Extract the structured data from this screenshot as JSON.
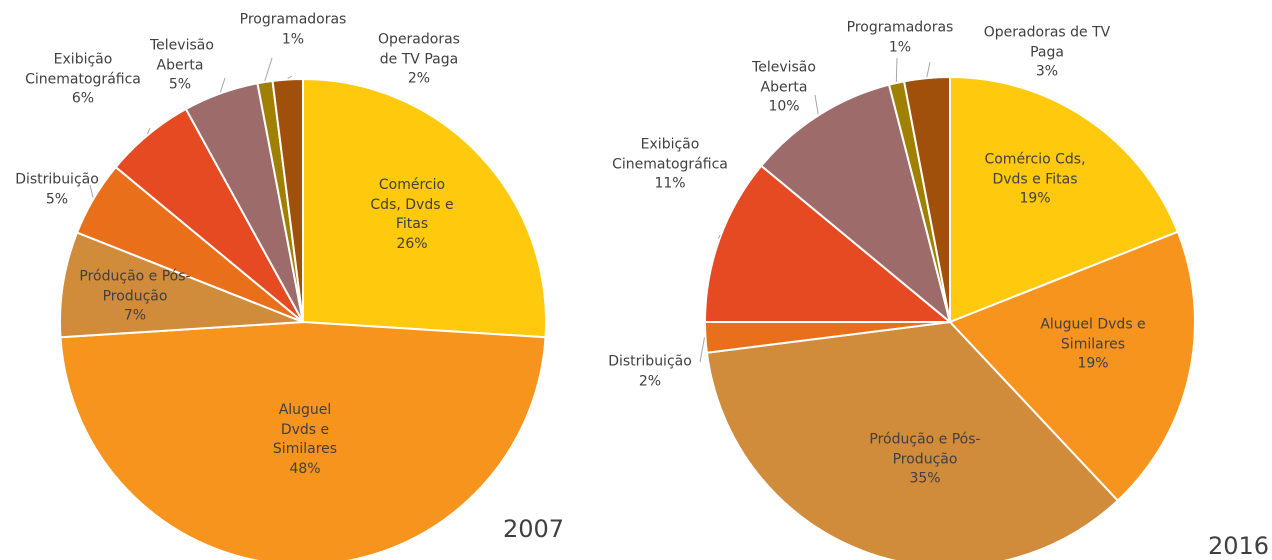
{
  "chart_data": [
    {
      "type": "pie",
      "title": "2007",
      "categories": [
        "Comércio Cds, Dvds e Fitas",
        "Aluguel Dvds e Similares",
        "Pródução e Pós-Produção",
        "Distribuição",
        "Exibição Cinematográfica",
        "Televisão Aberta",
        "Programadoras",
        "Operadoras de TV Paga"
      ],
      "values": [
        26,
        48,
        7,
        5,
        6,
        5,
        1,
        2
      ],
      "value_labels": [
        "26%",
        "48%",
        "7%",
        "5%",
        "6%",
        "5%",
        "1%",
        "2%"
      ],
      "colors": [
        "#ffc90e",
        "#f7941d",
        "#d08b3b",
        "#ea6f1a",
        "#e54a22",
        "#9e6b6b",
        "#a08000",
        "#a0500a"
      ]
    },
    {
      "type": "pie",
      "title": "2016",
      "categories": [
        "Comércio Cds, Dvds e Fitas",
        "Aluguel  Dvds e Similares",
        "Pródução e Pós-Produção",
        "Distribuição",
        "Exibição Cinematográfica",
        "Televisão Aberta",
        "Programadoras",
        "Operadoras de TV Paga"
      ],
      "values": [
        19,
        19,
        35,
        2,
        11,
        10,
        1,
        3
      ],
      "value_labels": [
        "19%",
        "19%",
        "35%",
        "2%",
        "11%",
        "10%",
        "1%",
        "3%"
      ],
      "colors": [
        "#ffc90e",
        "#f7941d",
        "#d08b3b",
        "#ea6f1a",
        "#e54a22",
        "#9e6b6b",
        "#a08000",
        "#a0500a"
      ]
    }
  ]
}
